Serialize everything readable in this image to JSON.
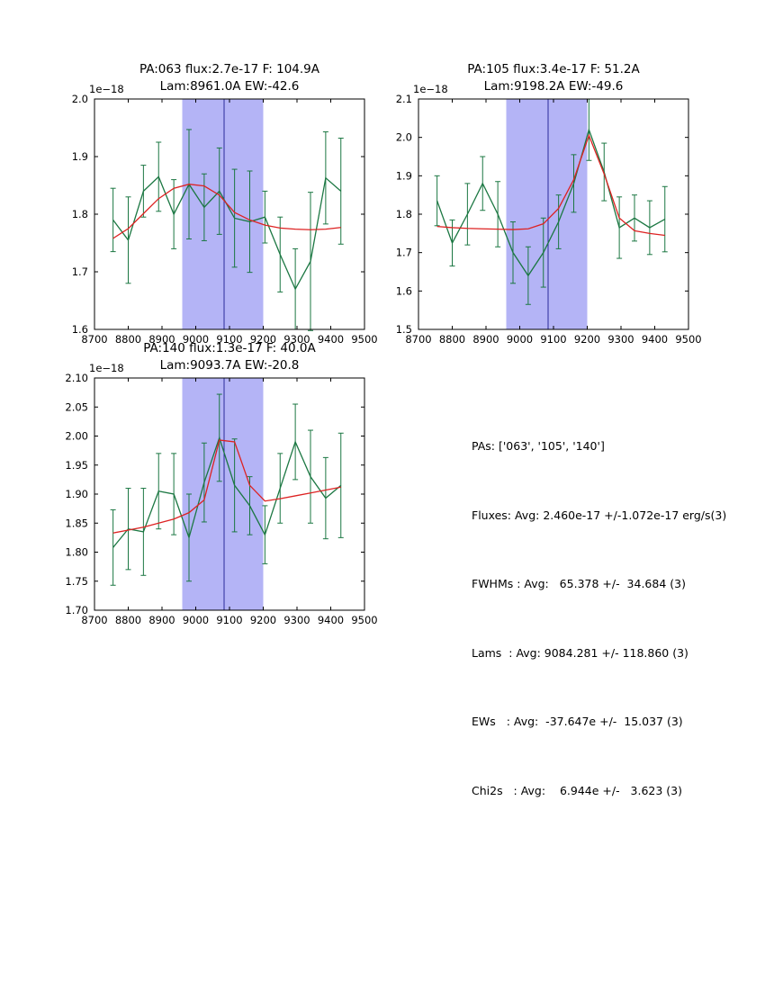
{
  "figure": {
    "background": "#ffffff"
  },
  "summary": {
    "lines": [
      "PAs: ['063', '105', '140']",
      "Fluxes: Avg: 2.460e-17 +/-1.072e-17 erg/s(3)",
      "FWHMs : Avg:   65.378 +/-  34.684 (3)",
      "Lams  : Avg: 9084.281 +/- 118.860 (3)",
      "EWs   : Avg:  -37.647e +/-  15.037 (3)",
      "Chi2s   : Avg:    6.944e +/-   3.623 (3)"
    ]
  },
  "chart_data": [
    {
      "id": "pa063",
      "type": "line",
      "title_line1": "PA:063 flux:2.7e-17 F: 104.9A",
      "title_line2": "Lam:8961.0A EW:-42.6",
      "offset_label": "1e−18",
      "xlim": [
        8700,
        9500
      ],
      "ylim": [
        1.6,
        2.0
      ],
      "xticks": [
        8700,
        8800,
        8900,
        9000,
        9100,
        9200,
        9300,
        9400,
        9500
      ],
      "xtick_labels": [
        "8700",
        "8800",
        "8900",
        "9000",
        "9100",
        "9200",
        "9300",
        "9400",
        "9500"
      ],
      "yticks": [
        1.6,
        1.7,
        1.8,
        1.9,
        2.0
      ],
      "ytick_labels": [
        "1.6",
        "1.7",
        "1.8",
        "1.9",
        "2.0"
      ],
      "grid": false,
      "legend": "none",
      "band": {
        "x0": 8960,
        "x1": 9200,
        "color": "#b4b4f6"
      },
      "vline": {
        "x": 9084,
        "color": "#2a2a9a"
      },
      "series": [
        {
          "name": "data",
          "color": "#1b7742",
          "x": [
            8755,
            8800,
            8845,
            8890,
            8935,
            8980,
            9025,
            9070,
            9115,
            9160,
            9205,
            9250,
            9295,
            9340,
            9385,
            9430
          ],
          "y": [
            1.79,
            1.755,
            1.84,
            1.865,
            1.8,
            1.852,
            1.812,
            1.84,
            1.793,
            1.787,
            1.795,
            1.73,
            1.67,
            1.718,
            1.863,
            1.84
          ],
          "yerr": [
            0.055,
            0.075,
            0.045,
            0.06,
            0.06,
            0.095,
            0.058,
            0.075,
            0.085,
            0.088,
            0.045,
            0.065,
            0.07,
            0.12,
            0.08,
            0.092
          ]
        },
        {
          "name": "fit",
          "color": "#dd2222",
          "x": [
            8755,
            8800,
            8845,
            8890,
            8935,
            8980,
            9025,
            9070,
            9115,
            9160,
            9205,
            9250,
            9295,
            9340,
            9385,
            9430
          ],
          "y": [
            1.758,
            1.775,
            1.801,
            1.827,
            1.845,
            1.852,
            1.849,
            1.833,
            1.803,
            1.79,
            1.781,
            1.776,
            1.774,
            1.773,
            1.774,
            1.777
          ]
        }
      ]
    },
    {
      "id": "pa105",
      "type": "line",
      "title_line1": "PA:105 flux:3.4e-17 F: 51.2A",
      "title_line2": "Lam:9198.2A EW:-49.6",
      "offset_label": "1e−18",
      "xlim": [
        8700,
        9500
      ],
      "ylim": [
        1.5,
        2.1
      ],
      "xticks": [
        8700,
        8800,
        8900,
        9000,
        9100,
        9200,
        9300,
        9400,
        9500
      ],
      "xtick_labels": [
        "8700",
        "8800",
        "8900",
        "9000",
        "9100",
        "9200",
        "9300",
        "9400",
        "9500"
      ],
      "yticks": [
        1.5,
        1.6,
        1.7,
        1.8,
        1.9,
        2.0,
        2.1
      ],
      "ytick_labels": [
        "1.5",
        "1.6",
        "1.7",
        "1.8",
        "1.9",
        "2.0",
        "2.1"
      ],
      "grid": false,
      "legend": "none",
      "band": {
        "x0": 8960,
        "x1": 9200,
        "color": "#b4b4f6"
      },
      "vline": {
        "x": 9084,
        "color": "#2a2a9a"
      },
      "series": [
        {
          "name": "data",
          "color": "#1b7742",
          "x": [
            8755,
            8800,
            8845,
            8890,
            8935,
            8980,
            9025,
            9070,
            9115,
            9160,
            9205,
            9250,
            9295,
            9340,
            9385,
            9430
          ],
          "y": [
            1.835,
            1.725,
            1.8,
            1.88,
            1.8,
            1.7,
            1.64,
            1.7,
            1.78,
            1.88,
            2.02,
            1.91,
            1.765,
            1.79,
            1.765,
            1.787
          ],
          "yerr": [
            0.065,
            0.06,
            0.08,
            0.07,
            0.085,
            0.08,
            0.075,
            0.09,
            0.07,
            0.075,
            0.08,
            0.075,
            0.08,
            0.06,
            0.07,
            0.085
          ]
        },
        {
          "name": "fit",
          "color": "#dd2222",
          "x": [
            8755,
            8800,
            8845,
            8890,
            8935,
            8980,
            9025,
            9070,
            9115,
            9160,
            9205,
            9250,
            9295,
            9340,
            9385,
            9430
          ],
          "y": [
            1.768,
            1.765,
            1.763,
            1.762,
            1.761,
            1.76,
            1.762,
            1.775,
            1.815,
            1.89,
            2.005,
            1.905,
            1.79,
            1.757,
            1.75,
            1.745
          ]
        }
      ]
    },
    {
      "id": "pa140",
      "type": "line",
      "title_line1": "PA:140 flux:1.3e-17 F: 40.0A",
      "title_line2": "Lam:9093.7A EW:-20.8",
      "offset_label": "1e−18",
      "xlim": [
        8700,
        9500
      ],
      "ylim": [
        1.7,
        2.1
      ],
      "xticks": [
        8700,
        8800,
        8900,
        9000,
        9100,
        9200,
        9300,
        9400,
        9500
      ],
      "xtick_labels": [
        "8700",
        "8800",
        "8900",
        "9000",
        "9100",
        "9200",
        "9300",
        "9400",
        "9500"
      ],
      "yticks": [
        1.7,
        1.75,
        1.8,
        1.85,
        1.9,
        1.95,
        2.0,
        2.05,
        2.1
      ],
      "ytick_labels": [
        "1.70",
        "1.75",
        "1.80",
        "1.85",
        "1.90",
        "1.95",
        "2.00",
        "2.05",
        "2.10"
      ],
      "grid": false,
      "legend": "none",
      "band": {
        "x0": 8960,
        "x1": 9200,
        "color": "#b4b4f6"
      },
      "vline": {
        "x": 9084,
        "color": "#2a2a9a"
      },
      "series": [
        {
          "name": "data",
          "color": "#1b7742",
          "x": [
            8755,
            8800,
            8845,
            8890,
            8935,
            8980,
            9025,
            9070,
            9115,
            9160,
            9205,
            9250,
            9295,
            9340,
            9385,
            9430
          ],
          "y": [
            1.808,
            1.84,
            1.835,
            1.905,
            1.9,
            1.825,
            1.92,
            1.997,
            1.915,
            1.88,
            1.83,
            1.91,
            1.99,
            1.93,
            1.893,
            1.915
          ],
          "yerr": [
            0.065,
            0.07,
            0.075,
            0.065,
            0.07,
            0.075,
            0.068,
            0.075,
            0.08,
            0.05,
            0.05,
            0.06,
            0.065,
            0.08,
            0.07,
            0.09
          ]
        },
        {
          "name": "fit",
          "color": "#dd2222",
          "x": [
            8755,
            8800,
            8845,
            8890,
            8935,
            8980,
            9025,
            9070,
            9115,
            9160,
            9205,
            9250,
            9295,
            9340,
            9385,
            9430
          ],
          "y": [
            1.833,
            1.838,
            1.843,
            1.85,
            1.857,
            1.868,
            1.89,
            1.993,
            1.99,
            1.915,
            1.888,
            1.892,
            1.897,
            1.902,
            1.907,
            1.912
          ]
        }
      ]
    }
  ]
}
